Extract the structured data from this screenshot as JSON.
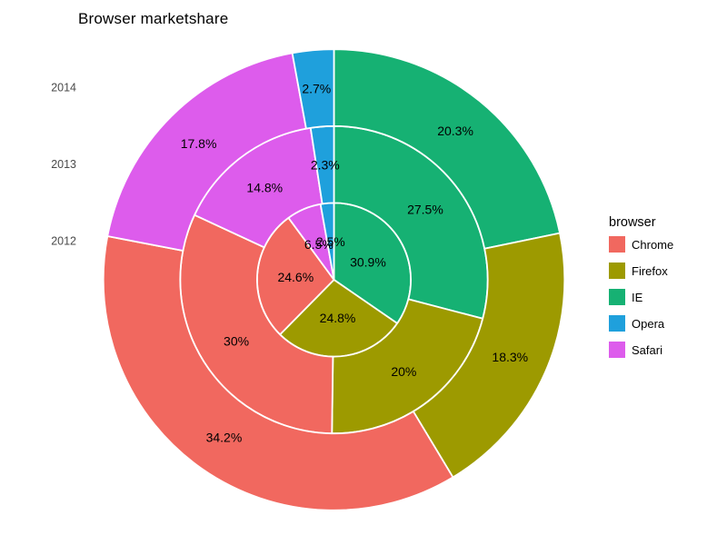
{
  "title": "Browser marketshare",
  "legend": {
    "title": "browser",
    "items": [
      {
        "label": "Chrome",
        "color": "#F1685F"
      },
      {
        "label": "Firefox",
        "color": "#9D9A00"
      },
      {
        "label": "IE",
        "color": "#16B173"
      },
      {
        "label": "Opera",
        "color": "#1FA0DC"
      },
      {
        "label": "Safari",
        "color": "#DD5CEC"
      }
    ]
  },
  "chart_data": {
    "type": "pie",
    "variant": "nested-donut",
    "title": "Browser marketshare",
    "legend_title": "browser",
    "legend_position": "right",
    "categories": [
      "Chrome",
      "Firefox",
      "IE",
      "Opera",
      "Safari"
    ],
    "colors": {
      "Chrome": "#F1685F",
      "Firefox": "#9D9A00",
      "IE": "#16B173",
      "Opera": "#1FA0DC",
      "Safari": "#DD5CEC"
    },
    "clockwise_order_from_top": [
      "IE",
      "Firefox",
      "Chrome",
      "Safari",
      "Opera"
    ],
    "ring_order_inner_to_outer": [
      "2012",
      "2013",
      "2014"
    ],
    "rings": [
      {
        "year": "2012",
        "position": "inner",
        "values": {
          "IE": 30.9,
          "Firefox": 24.8,
          "Chrome": 24.6,
          "Safari": 6.5,
          "Opera": 2.5
        },
        "labels": {
          "IE": "30.9%",
          "Firefox": "24.8%",
          "Chrome": "24.6%",
          "Safari": "6.5%",
          "Opera": "2.5%"
        }
      },
      {
        "year": "2013",
        "position": "middle",
        "values": {
          "IE": 27.5,
          "Firefox": 20,
          "Chrome": 30,
          "Safari": 14.8,
          "Opera": 2.3
        },
        "labels": {
          "IE": "27.5%",
          "Firefox": "20%",
          "Chrome": "30%",
          "Safari": "14.8%",
          "Opera": "2.3%"
        }
      },
      {
        "year": "2014",
        "position": "outer",
        "values": {
          "IE": 20.3,
          "Firefox": 18.3,
          "Chrome": 34.2,
          "Safari": 17.8,
          "Opera": 2.7
        },
        "labels": {
          "IE": "20.3%",
          "Firefox": "18.3%",
          "Chrome": "34.2%",
          "Safari": "17.8%",
          "Opera": "2.7%"
        }
      }
    ],
    "note_angles": "arc angles normalized to each ring's own sum, starting at 12 o'clock clockwise"
  }
}
